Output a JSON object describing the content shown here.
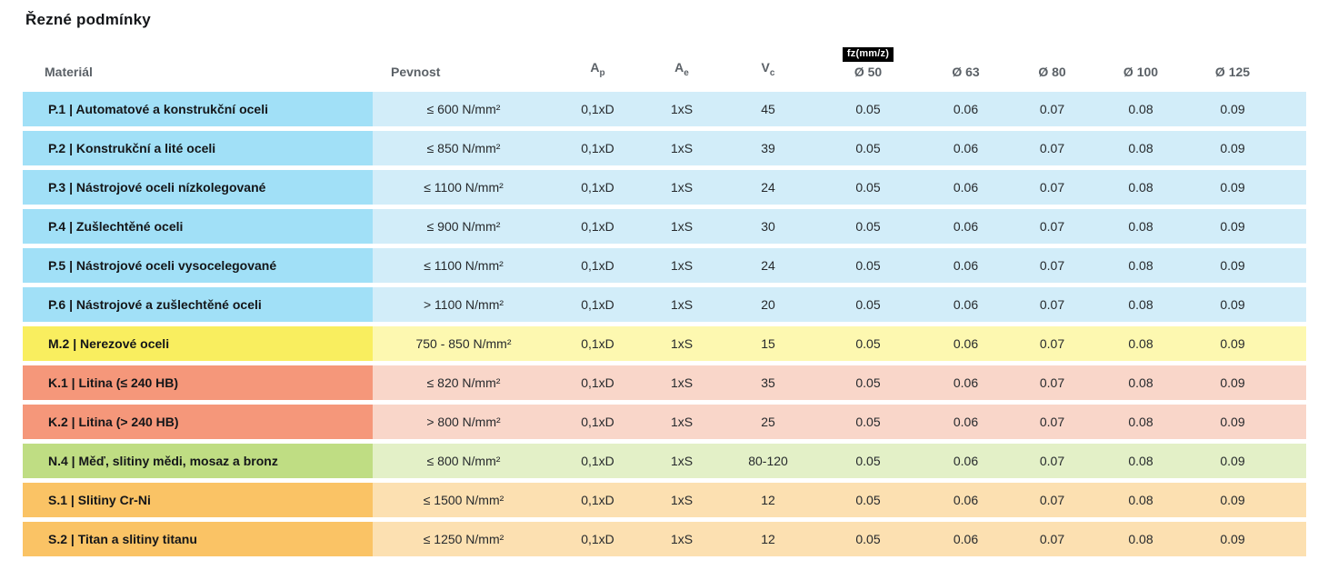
{
  "title": "Řezné podmínky",
  "table": {
    "headers": {
      "material": "Materiál",
      "pevnost": "Pevnost",
      "ap_base": "A",
      "ap_sub": "p",
      "ae_base": "A",
      "ae_sub": "e",
      "vc_base": "V",
      "vc_sub": "c",
      "fz_badge": "fz(mm/z)",
      "diameters": [
        "Ø 50",
        "Ø 63",
        "Ø 80",
        "Ø 100",
        "Ø 125"
      ]
    },
    "rows": [
      {
        "group": "blue",
        "material": "P.1 | Automatové a konstrukční oceli",
        "pevnost": "≤ 600 N/mm²",
        "ap": "0,1xD",
        "ae": "1xS",
        "vc": "45",
        "fz": [
          "0.05",
          "0.06",
          "0.07",
          "0.08",
          "0.09"
        ]
      },
      {
        "group": "blue",
        "material": "P.2 | Konstrukční a lité oceli",
        "pevnost": "≤ 850 N/mm²",
        "ap": "0,1xD",
        "ae": "1xS",
        "vc": "39",
        "fz": [
          "0.05",
          "0.06",
          "0.07",
          "0.08",
          "0.09"
        ]
      },
      {
        "group": "blue",
        "material": "P.3 | Nástrojové oceli nízkolegované",
        "pevnost": "≤ 1100 N/mm²",
        "ap": "0,1xD",
        "ae": "1xS",
        "vc": "24",
        "fz": [
          "0.05",
          "0.06",
          "0.07",
          "0.08",
          "0.09"
        ]
      },
      {
        "group": "blue",
        "material": "P.4 | Zušlechtěné oceli",
        "pevnost": "≤ 900 N/mm²",
        "ap": "0,1xD",
        "ae": "1xS",
        "vc": "30",
        "fz": [
          "0.05",
          "0.06",
          "0.07",
          "0.08",
          "0.09"
        ]
      },
      {
        "group": "blue",
        "material": "P.5 | Nástrojové oceli vysocelegované",
        "pevnost": "≤ 1100 N/mm²",
        "ap": "0,1xD",
        "ae": "1xS",
        "vc": "24",
        "fz": [
          "0.05",
          "0.06",
          "0.07",
          "0.08",
          "0.09"
        ]
      },
      {
        "group": "blue",
        "material": "P.6 | Nástrojové a zušlechtěné oceli",
        "pevnost": "> 1100 N/mm²",
        "ap": "0,1xD",
        "ae": "1xS",
        "vc": "20",
        "fz": [
          "0.05",
          "0.06",
          "0.07",
          "0.08",
          "0.09"
        ]
      },
      {
        "group": "yellow",
        "material": "M.2 | Nerezové oceli",
        "pevnost": "750 - 850 N/mm²",
        "ap": "0,1xD",
        "ae": "1xS",
        "vc": "15",
        "fz": [
          "0.05",
          "0.06",
          "0.07",
          "0.08",
          "0.09"
        ]
      },
      {
        "group": "red",
        "material": "K.1 | Litina (≤ 240 HB)",
        "pevnost": "≤ 820 N/mm²",
        "ap": "0,1xD",
        "ae": "1xS",
        "vc": "35",
        "fz": [
          "0.05",
          "0.06",
          "0.07",
          "0.08",
          "0.09"
        ]
      },
      {
        "group": "red",
        "material": "K.2 | Litina (> 240 HB)",
        "pevnost": "> 800 N/mm²",
        "ap": "0,1xD",
        "ae": "1xS",
        "vc": "25",
        "fz": [
          "0.05",
          "0.06",
          "0.07",
          "0.08",
          "0.09"
        ]
      },
      {
        "group": "green",
        "material": "N.4 | Měď, slitiny mědi, mosaz a bronz",
        "pevnost": "≤ 800 N/mm²",
        "ap": "0,1xD",
        "ae": "1xS",
        "vc": "80-120",
        "fz": [
          "0.05",
          "0.06",
          "0.07",
          "0.08",
          "0.09"
        ]
      },
      {
        "group": "orange",
        "material": "S.1 | Slitiny Cr-Ni",
        "pevnost": "≤ 1500 N/mm²",
        "ap": "0,1xD",
        "ae": "1xS",
        "vc": "12",
        "fz": [
          "0.05",
          "0.06",
          "0.07",
          "0.08",
          "0.09"
        ]
      },
      {
        "group": "orange",
        "material": "S.2 | Titan a slitiny titanu",
        "pevnost": "≤ 1250 N/mm²",
        "ap": "0,1xD",
        "ae": "1xS",
        "vc": "12",
        "fz": [
          "0.05",
          "0.06",
          "0.07",
          "0.08",
          "0.09"
        ]
      }
    ]
  },
  "colors": {
    "groups": {
      "blue": {
        "label": "#a1e0f7",
        "row": "#d2edf9"
      },
      "yellow": {
        "label": "#f9ee5f",
        "row": "#fdf8b0"
      },
      "red": {
        "label": "#f5977a",
        "row": "#f9d6c9"
      },
      "green": {
        "label": "#bfdd83",
        "row": "#e3f0c7"
      },
      "orange": {
        "label": "#fac365",
        "row": "#fce0b1"
      }
    },
    "badge_bg": "#000000",
    "badge_text": "#ffffff"
  },
  "chart_data": {
    "type": "table",
    "title": "Řezné podmínky",
    "columns": [
      "Materiál",
      "Pevnost",
      "Ap",
      "Ae",
      "Vc",
      "fz(mm/z) Ø 50",
      "Ø 63",
      "Ø 80",
      "Ø 100",
      "Ø 125"
    ],
    "rows": [
      [
        "P.1 | Automatové a konstrukční oceli",
        "≤ 600 N/mm²",
        "0,1xD",
        "1xS",
        "45",
        "0.05",
        "0.06",
        "0.07",
        "0.08",
        "0.09"
      ],
      [
        "P.2 | Konstrukční a lité oceli",
        "≤ 850 N/mm²",
        "0,1xD",
        "1xS",
        "39",
        "0.05",
        "0.06",
        "0.07",
        "0.08",
        "0.09"
      ],
      [
        "P.3 | Nástrojové oceli nízkolegované",
        "≤ 1100 N/mm²",
        "0,1xD",
        "1xS",
        "24",
        "0.05",
        "0.06",
        "0.07",
        "0.08",
        "0.09"
      ],
      [
        "P.4 | Zušlechtěné oceli",
        "≤ 900 N/mm²",
        "0,1xD",
        "1xS",
        "30",
        "0.05",
        "0.06",
        "0.07",
        "0.08",
        "0.09"
      ],
      [
        "P.5 | Nástrojové oceli vysocelegované",
        "≤ 1100 N/mm²",
        "0,1xD",
        "1xS",
        "24",
        "0.05",
        "0.06",
        "0.07",
        "0.08",
        "0.09"
      ],
      [
        "P.6 | Nástrojové a zušlechtěné oceli",
        "> 1100 N/mm²",
        "0,1xD",
        "1xS",
        "20",
        "0.05",
        "0.06",
        "0.07",
        "0.08",
        "0.09"
      ],
      [
        "M.2 | Nerezové oceli",
        "750 - 850 N/mm²",
        "0,1xD",
        "1xS",
        "15",
        "0.05",
        "0.06",
        "0.07",
        "0.08",
        "0.09"
      ],
      [
        "K.1 | Litina (≤ 240 HB)",
        "≤ 820 N/mm²",
        "0,1xD",
        "1xS",
        "35",
        "0.05",
        "0.06",
        "0.07",
        "0.08",
        "0.09"
      ],
      [
        "K.2 | Litina (> 240 HB)",
        "> 800 N/mm²",
        "0,1xD",
        "1xS",
        "25",
        "0.05",
        "0.06",
        "0.07",
        "0.08",
        "0.09"
      ],
      [
        "N.4 | Měď, slitiny mědi, mosaz a bronz",
        "≤ 800 N/mm²",
        "0,1xD",
        "1xS",
        "80-120",
        "0.05",
        "0.06",
        "0.07",
        "0.08",
        "0.09"
      ],
      [
        "S.1 | Slitiny Cr-Ni",
        "≤ 1500 N/mm²",
        "0,1xD",
        "1xS",
        "12",
        "0.05",
        "0.06",
        "0.07",
        "0.08",
        "0.09"
      ],
      [
        "S.2 | Titan a slitiny titanu",
        "≤ 1250 N/mm²",
        "0,1xD",
        "1xS",
        "12",
        "0.05",
        "0.06",
        "0.07",
        "0.08",
        "0.09"
      ]
    ]
  }
}
